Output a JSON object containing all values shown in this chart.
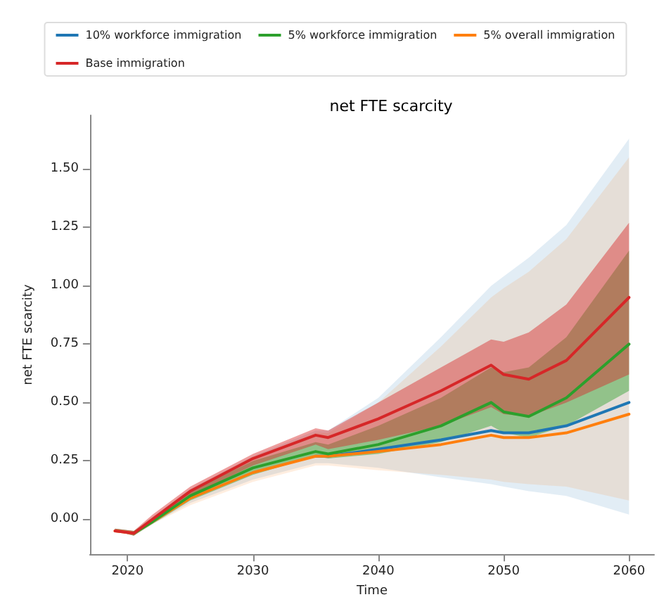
{
  "chart_data": {
    "type": "line",
    "title": "net FTE scarcity",
    "xlabel": "Time",
    "ylabel": "net FTE scarcity",
    "legend": "top",
    "grid": false,
    "x": [
      2019,
      2020.5,
      2022,
      2025,
      2030,
      2035,
      2036,
      2040,
      2045,
      2049,
      2050,
      2052,
      2055,
      2060
    ],
    "xlim": [
      2017,
      2062
    ],
    "xticks": [
      2020,
      2030,
      2040,
      2050,
      2060
    ],
    "ylim": [
      -0.15,
      1.73
    ],
    "yticks": [
      {
        "value": 0,
        "label": "0.00"
      },
      {
        "value": 0.25,
        "label": "0.25"
      },
      {
        "value": 0.5,
        "label": "0.50"
      },
      {
        "value": 0.75,
        "label": "0.75"
      },
      {
        "value": 1,
        "label": "1.00"
      },
      {
        "value": 1.25,
        "label": "1.25"
      },
      {
        "value": 1.5,
        "label": "1.50"
      }
    ],
    "series": [
      {
        "name": "10% workforce immigration",
        "color": "#1f77b4",
        "values": [
          null,
          null,
          null,
          null,
          null,
          0.27,
          0.27,
          0.3,
          0.34,
          0.38,
          0.37,
          0.37,
          0.4,
          0.5
        ],
        "lower": [
          -0.05,
          -0.07,
          -0.02,
          0.07,
          0.17,
          0.24,
          0.24,
          0.22,
          0.18,
          0.15,
          0.14,
          0.12,
          0.1,
          0.02
        ],
        "upper": [
          -0.04,
          -0.05,
          0.01,
          0.13,
          0.27,
          0.38,
          0.38,
          0.52,
          0.78,
          1.0,
          1.04,
          1.12,
          1.26,
          1.63
        ]
      },
      {
        "name": "5% overall immigration",
        "color": "#ff7f0e",
        "values": [
          -0.05,
          -0.06,
          -0.01,
          0.09,
          0.2,
          0.27,
          0.27,
          0.29,
          0.32,
          0.36,
          0.35,
          0.35,
          0.37,
          0.45
        ],
        "lower": [
          -0.05,
          -0.07,
          -0.02,
          0.06,
          0.16,
          0.23,
          0.23,
          0.21,
          0.19,
          0.17,
          0.16,
          0.15,
          0.14,
          0.08
        ],
        "upper": [
          -0.04,
          -0.05,
          0.01,
          0.12,
          0.26,
          0.37,
          0.37,
          0.5,
          0.74,
          0.95,
          0.99,
          1.06,
          1.2,
          1.55
        ]
      },
      {
        "name": "5% workforce immigration",
        "color": "#2ca02c",
        "values": [
          null,
          -0.06,
          -0.01,
          0.1,
          0.22,
          0.29,
          0.28,
          0.32,
          0.4,
          0.5,
          0.46,
          0.44,
          0.52,
          0.75
        ],
        "lower": [
          -0.05,
          -0.07,
          -0.02,
          0.08,
          0.19,
          0.27,
          0.26,
          0.28,
          0.33,
          0.4,
          0.37,
          0.35,
          0.4,
          0.55
        ],
        "upper": [
          -0.04,
          -0.05,
          0.0,
          0.12,
          0.25,
          0.33,
          0.32,
          0.4,
          0.52,
          0.65,
          0.63,
          0.65,
          0.78,
          1.15
        ]
      },
      {
        "name": "Base immigration",
        "color": "#d62728",
        "values": [
          -0.05,
          -0.06,
          0.0,
          0.12,
          0.26,
          0.36,
          0.35,
          0.43,
          0.55,
          0.66,
          0.62,
          0.6,
          0.68,
          0.95
        ],
        "lower": [
          -0.05,
          -0.07,
          -0.01,
          0.1,
          0.23,
          0.32,
          0.3,
          0.34,
          0.4,
          0.48,
          0.45,
          0.44,
          0.5,
          0.62
        ],
        "upper": [
          -0.04,
          -0.05,
          0.02,
          0.14,
          0.28,
          0.39,
          0.38,
          0.5,
          0.65,
          0.77,
          0.76,
          0.8,
          0.92,
          1.27
        ]
      }
    ]
  }
}
